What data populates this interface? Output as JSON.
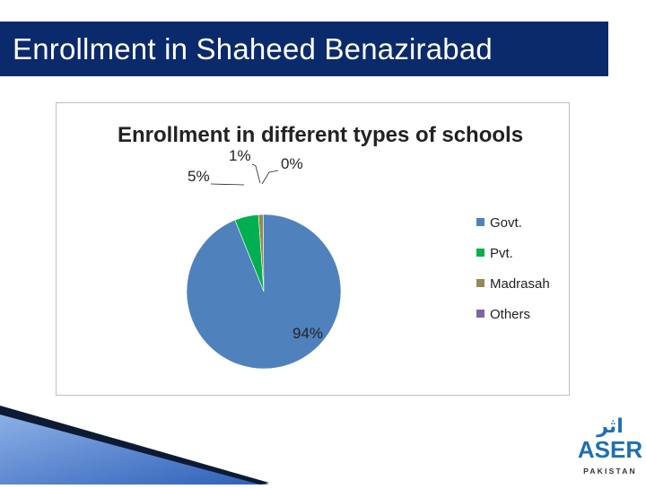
{
  "slide": {
    "title": "Enrollment in Shaheed Benazirabad"
  },
  "chart_data": {
    "type": "pie",
    "title": "Enrollment in different types of schools",
    "categories": [
      "Govt.",
      "Pvt.",
      "Madrasah",
      "Others"
    ],
    "values": [
      94,
      5,
      1,
      0
    ],
    "labels": [
      "94%",
      "5%",
      "1%",
      "0%"
    ],
    "colors": [
      "#4f81bd",
      "#00b050",
      "#948a54",
      "#8064a2"
    ],
    "legend_position": "right"
  },
  "logo": {
    "urdu": "اثر",
    "name": "ASER",
    "country": "PAKISTAN",
    "color": "#1f6fb2"
  }
}
